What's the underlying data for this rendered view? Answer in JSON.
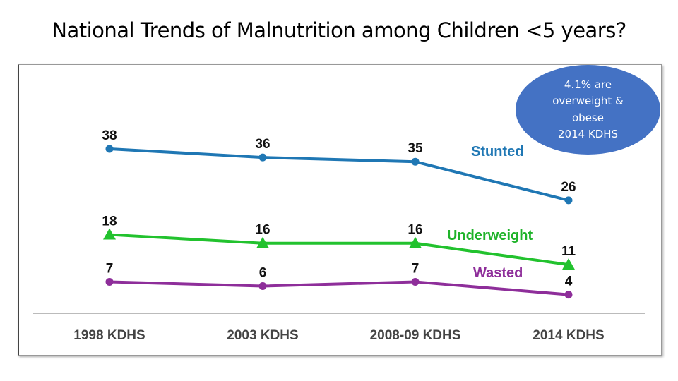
{
  "title": "National Trends of Malnutrition among Children <5 years?",
  "callout": [
    "4.1% are",
    "overweight &",
    "obese",
    "2014 KDHS"
  ],
  "chart_data": {
    "type": "line",
    "categories": [
      "1998 KDHS",
      "2003 KDHS",
      "2008-09 KDHS",
      "2014 KDHS"
    ],
    "ylim": [
      0,
      40
    ],
    "grid": false,
    "series": [
      {
        "name": "Stunted",
        "values": [
          38,
          36,
          35,
          26
        ],
        "color": "#1f77b4",
        "marker": "circle"
      },
      {
        "name": "Underweight",
        "values": [
          18,
          16,
          16,
          11
        ],
        "color": "#22c22e",
        "marker": "triangle"
      },
      {
        "name": "Wasted",
        "values": [
          7,
          6,
          7,
          4
        ],
        "color": "#8e2e9a",
        "marker": "circle"
      }
    ]
  }
}
